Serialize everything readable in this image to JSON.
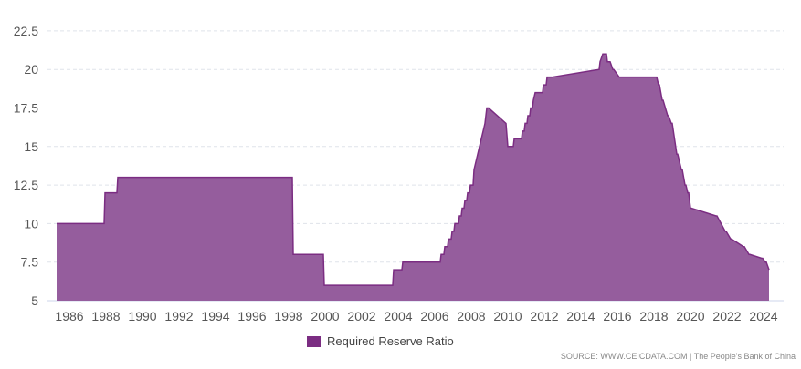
{
  "chart_data": {
    "type": "area",
    "title": "",
    "xlabel": "",
    "ylabel": "",
    "xlim": [
      1985.3,
      2024.8
    ],
    "ylim": [
      5,
      23.5
    ],
    "yticks": [
      "5",
      "7.5",
      "10",
      "12.5",
      "15",
      "17.5",
      "20",
      "22.5"
    ],
    "xticks": [
      "1986",
      "1988",
      "1990",
      "1992",
      "1994",
      "1996",
      "1998",
      "2000",
      "2002",
      "2004",
      "2006",
      "2008",
      "2010",
      "2012",
      "2014",
      "2016",
      "2018",
      "2020",
      "2022",
      "2024"
    ],
    "grid": "horizontal dashed",
    "legend_position": "bottom-center",
    "series": [
      {
        "name": "Required Reserve Ratio",
        "color": "#7b2d82",
        "fill": "#955d9d",
        "x": [
          1985.3,
          1987.9,
          1987.95,
          1988.6,
          1988.65,
          1998.2,
          1998.25,
          1999.9,
          1999.95,
          2003.7,
          2003.75,
          2004.2,
          2004.25,
          2006.3,
          2006.35,
          2006.5,
          2006.55,
          2006.7,
          2006.75,
          2006.9,
          2006.95,
          2007.05,
          2007.1,
          2007.3,
          2007.35,
          2007.45,
          2007.5,
          2007.6,
          2007.65,
          2007.75,
          2007.8,
          2007.9,
          2007.95,
          2008.1,
          2008.15,
          2008.35,
          2008.45,
          2008.55,
          2008.65,
          2008.75,
          2008.8,
          2008.85,
          2008.95,
          2009.9,
          2010.0,
          2010.15,
          2010.2,
          2010.3,
          2010.35,
          2010.75,
          2010.8,
          2010.9,
          2010.95,
          2011.05,
          2011.1,
          2011.2,
          2011.25,
          2011.35,
          2011.4,
          2011.5,
          2011.9,
          2011.95,
          2012.1,
          2012.15,
          2012.35,
          2012.4,
          2015.0,
          2015.05,
          2015.2,
          2015.25,
          2015.4,
          2015.45,
          2015.6,
          2015.75,
          2015.8,
          2016.1,
          2016.15,
          2016.3,
          2016.35,
          2018.1,
          2018.15,
          2018.25,
          2018.3,
          2018.45,
          2018.5,
          2018.75,
          2018.8,
          2018.95,
          2019.0,
          2019.25,
          2019.3,
          2019.5,
          2019.55,
          2019.7,
          2019.75,
          2019.85,
          2019.9,
          2020.0,
          2020.05,
          2021.4,
          2021.45,
          2021.9,
          2021.95,
          2022.2,
          2022.25,
          2022.9,
          2022.95,
          2023.2,
          2023.25,
          2023.9,
          2023.95,
          2024.1,
          2024.15,
          2024.3
        ],
        "values": [
          10,
          10,
          12,
          12,
          13,
          13,
          8,
          8,
          6,
          6,
          7,
          7,
          7.5,
          7.5,
          8,
          8,
          8.5,
          8.5,
          9,
          9,
          9.5,
          9.5,
          10,
          10,
          10.5,
          10.5,
          11,
          11,
          11.5,
          11.5,
          12,
          12,
          12.5,
          12.5,
          13.5,
          14.5,
          15,
          15.5,
          16,
          16.5,
          17,
          17.5,
          17.5,
          16.5,
          15,
          15,
          15,
          15,
          15.5,
          15.5,
          16,
          16,
          16.5,
          16.5,
          17,
          17,
          17.5,
          17.5,
          18,
          18.5,
          18.5,
          19,
          19,
          19.5,
          19.5,
          19.5,
          20,
          20.5,
          21,
          21,
          21,
          20.5,
          20.5,
          20,
          20,
          19.5,
          19.5,
          19.5,
          19.5,
          19.5,
          19.5,
          19,
          19,
          18,
          18,
          17,
          17,
          16.5,
          16.5,
          14.5,
          14.5,
          13.5,
          13.5,
          12.5,
          12.5,
          12,
          12,
          11,
          11,
          10.5,
          10.5,
          9.5,
          9.5,
          9,
          9,
          8.5,
          8.5,
          8,
          8,
          7.75,
          7.75,
          7.5,
          7.5,
          7
        ]
      }
    ]
  },
  "source_text": "SOURCE: WWW.CEICDATA.COM | The People's Bank of China"
}
